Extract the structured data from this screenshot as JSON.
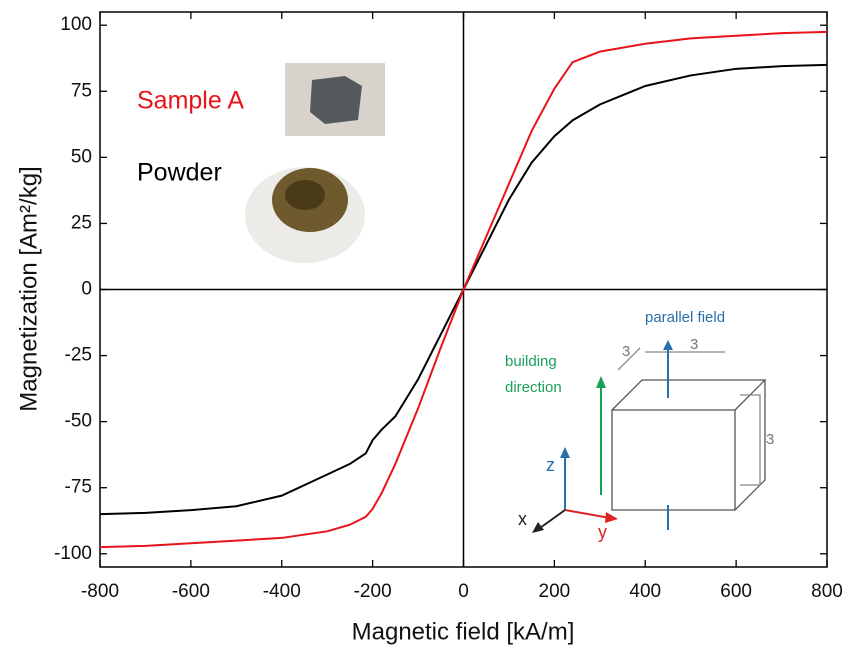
{
  "chart_data": {
    "type": "line",
    "xlabel": "Magnetic field [kA/m]",
    "ylabel": "Magnetization [Am²/kg]",
    "x": [
      -800,
      -700,
      -600,
      -500,
      -400,
      -300,
      -250,
      -215,
      -200,
      -180,
      -150,
      -100,
      -50,
      0,
      50,
      100,
      150,
      200,
      240,
      300,
      400,
      500,
      600,
      700,
      800
    ],
    "series": [
      {
        "name": "Sample A",
        "color": "#e8141b",
        "values": [
          -97.5,
          -97,
          -96,
          -95,
          -94,
          -91.5,
          -89,
          -86,
          -83,
          -77,
          -66,
          -45,
          -22,
          0,
          20,
          40,
          60,
          76,
          86,
          90,
          93,
          95,
          96,
          97,
          97.5
        ]
      },
      {
        "name": "Powder",
        "color": "#000000",
        "values": [
          -85,
          -84.5,
          -83.5,
          -82,
          -78,
          -70,
          -66,
          -62,
          -57,
          -53,
          -48,
          -34,
          -17,
          0,
          17,
          34,
          48,
          58,
          64,
          70,
          77,
          81,
          83.5,
          84.5,
          85
        ]
      }
    ],
    "xlim": [
      -800,
      800
    ],
    "ylim": [
      -105,
      105
    ],
    "xticks": [
      -800,
      -600,
      -400,
      -200,
      0,
      200,
      400,
      600,
      800
    ],
    "yticks": [
      -100,
      -75,
      -50,
      -25,
      0,
      25,
      50,
      75,
      100
    ],
    "inset": {
      "parallel_field": "parallel field",
      "building_direction": [
        "building",
        "direction"
      ],
      "dimensions": [
        "3",
        "3",
        "3"
      ],
      "axes": [
        "z",
        "x",
        "y"
      ]
    }
  }
}
